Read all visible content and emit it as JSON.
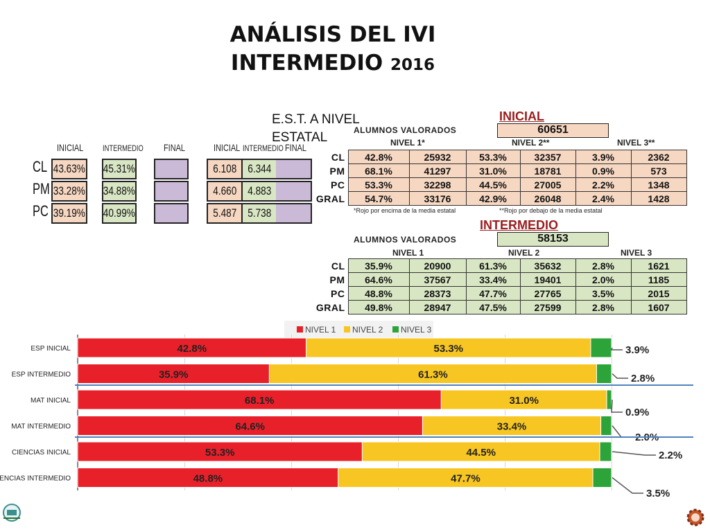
{
  "title_line1": "ANÁLISIS DEL IVI",
  "title_line2_text": "INTERMEDIO",
  "title_line2_year": "2016",
  "est_label": "E.S.T. A NIVEL ESTATAL",
  "summary": {
    "headers_left": [
      "INICIAL",
      "INTERMEDIO",
      "FINAL"
    ],
    "headers_right": [
      "INICIAL",
      "INTERMEDIO",
      "FINAL"
    ],
    "rows": [
      "CL",
      "PM",
      "PC"
    ],
    "pct_inicial": [
      "43.63%",
      "33.28%",
      "39.19%"
    ],
    "pct_intermedio": [
      "45.31%",
      "34.88%",
      "40.99%"
    ],
    "score_inicial": [
      "6.108",
      "4.660",
      "5.487"
    ],
    "score_intermedio": [
      "6.344",
      "4.883",
      "5.738"
    ]
  },
  "inicial_table": {
    "title": "INICIAL",
    "valorados_label": "ALUMNOS VALORADOS",
    "valorados": "60651",
    "niveles": [
      "NIVEL 1*",
      "NIVEL 2**",
      "NIVEL 3**"
    ],
    "rows": [
      {
        "label": "CL",
        "cells": [
          "42.8%",
          "25932",
          "53.3%",
          "32357",
          "3.9%",
          "2362"
        ]
      },
      {
        "label": "PM",
        "cells": [
          "68.1%",
          "41297",
          "31.0%",
          "18781",
          "0.9%",
          "573"
        ]
      },
      {
        "label": "PC",
        "cells": [
          "53.3%",
          "32298",
          "44.5%",
          "27005",
          "2.2%",
          "1348"
        ]
      },
      {
        "label": "GRAL",
        "cells": [
          "54.7%",
          "33176",
          "42.9%",
          "26048",
          "2.4%",
          "1428"
        ]
      }
    ],
    "note1": "*Rojo por encima de la media estatal",
    "note2": "**Rojo por debajo de  la media estatal"
  },
  "intermedio_table": {
    "title": "INTERMEDIO",
    "valorados_label": "ALUMNOS VALORADOS",
    "valorados": "58153",
    "niveles": [
      "NIVEL 1",
      "NIVEL 2",
      "NIVEL 3"
    ],
    "rows": [
      {
        "label": "CL",
        "cells": [
          "35.9%",
          "20900",
          "61.3%",
          "35632",
          "2.8%",
          "1621"
        ]
      },
      {
        "label": "PM",
        "cells": [
          "64.6%",
          "37567",
          "33.4%",
          "19401",
          "2.0%",
          "1185"
        ]
      },
      {
        "label": "PC",
        "cells": [
          "48.8%",
          "28373",
          "47.7%",
          "27765",
          "3.5%",
          "2015"
        ]
      },
      {
        "label": "GRAL",
        "cells": [
          "49.8%",
          "28947",
          "47.5%",
          "27599",
          "2.8%",
          "1607"
        ]
      }
    ]
  },
  "colors": {
    "nivel1": "#e8202a",
    "nivel2": "#f7c623",
    "nivel3": "#2ca43a",
    "divider": "#4f81bd"
  },
  "chart_data": {
    "type": "bar",
    "orientation": "horizontal",
    "stacked": true,
    "categories": [
      "ESP INICIAL",
      "ESP INTERMEDIO",
      "MAT INICIAL",
      "MAT INTERMEDIO",
      "CIENCIAS INICIAL",
      "CIENCIAS INTERMEDIO"
    ],
    "series": [
      {
        "name": "NIVEL 1",
        "values": [
          42.8,
          35.9,
          68.1,
          64.6,
          53.3,
          48.8
        ]
      },
      {
        "name": "NIVEL 2",
        "values": [
          53.3,
          61.3,
          31.0,
          33.4,
          44.5,
          47.7
        ]
      },
      {
        "name": "NIVEL 3",
        "values": [
          3.9,
          2.8,
          0.9,
          2.0,
          2.2,
          3.5
        ]
      }
    ],
    "labels": {
      "nivel1": [
        "42.8%",
        "35.9%",
        "68.1%",
        "64.6%",
        "53.3%",
        "48.8%"
      ],
      "nivel2": [
        "53.3%",
        "61.3%",
        "31.0%",
        "33.4%",
        "44.5%",
        "47.7%"
      ],
      "nivel3": [
        "3.9%",
        "2.8%",
        "0.9%",
        "2.0%",
        "2.2%",
        "3.5%"
      ]
    },
    "xlim": [
      0,
      100
    ],
    "legend": "top",
    "grid": true
  }
}
